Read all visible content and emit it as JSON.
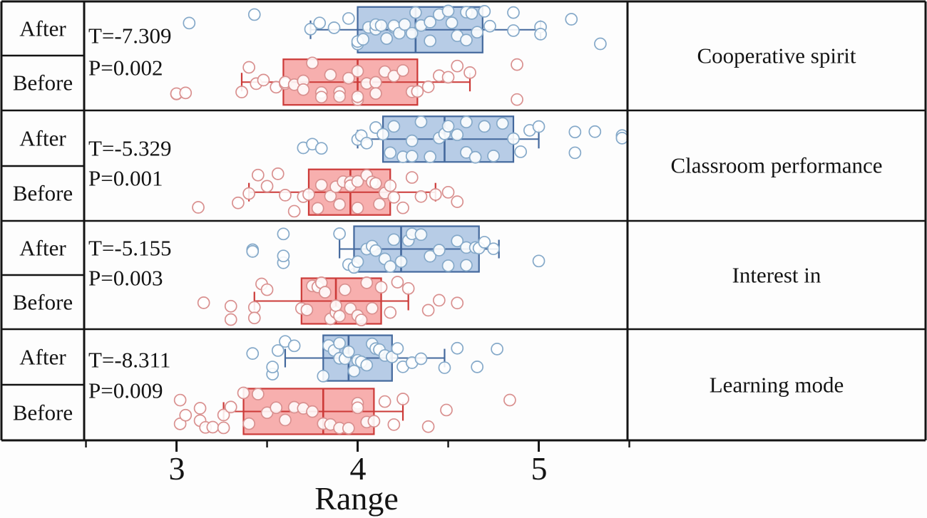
{
  "chart_data": {
    "type": "boxplot",
    "orientation": "horizontal",
    "xlabel": "Range",
    "x_ticks": [
      3,
      4,
      5
    ],
    "x_minor_ticks": [
      2.5,
      3.5,
      4.5,
      5.5
    ],
    "x_range": [
      2.5,
      5.5
    ],
    "groups": [
      "After",
      "Before"
    ],
    "legend_position": "none",
    "grid": false,
    "colors": {
      "after_fill": "#b7cce6",
      "after_stroke": "#44699d",
      "after_point": "#85a9c9",
      "before_fill": "#f7afae",
      "before_stroke": "#cc3a38",
      "before_point": "#d9908f",
      "frame": "#141414",
      "point_fill": "#ffffff"
    },
    "panels": [
      {
        "category": "Cooperative spirit",
        "t": "T=-7.309",
        "p": "P=0.002",
        "after": {
          "box": {
            "whisker_low": 3.74,
            "q1": 4.0,
            "median": 4.32,
            "q3": 4.69,
            "whisker_high": 5.01
          },
          "points": [
            3.07,
            3.43,
            3.74,
            3.79,
            3.87,
            3.95,
            4.0,
            4.0,
            4.03,
            4.06,
            4.1,
            4.1,
            4.13,
            4.16,
            4.2,
            4.2,
            4.23,
            4.26,
            4.3,
            4.32,
            4.35,
            4.4,
            4.4,
            4.45,
            4.5,
            4.52,
            4.55,
            4.6,
            4.6,
            4.63,
            4.66,
            4.7,
            4.73,
            4.86,
            4.86,
            5.01,
            5.01,
            5.18,
            5.34
          ]
        },
        "before": {
          "box": {
            "whisker_low": 3.36,
            "q1": 3.59,
            "median": 4.0,
            "q3": 4.33,
            "whisker_high": 4.62
          },
          "points": [
            3.0,
            3.0,
            3.05,
            3.36,
            3.4,
            3.44,
            3.48,
            3.55,
            3.6,
            3.6,
            3.65,
            3.7,
            3.7,
            3.75,
            3.8,
            3.8,
            3.85,
            3.9,
            3.9,
            3.95,
            4.0,
            4.0,
            4.0,
            4.05,
            4.1,
            4.1,
            4.15,
            4.2,
            4.25,
            4.3,
            4.33,
            4.39,
            4.45,
            4.5,
            4.55,
            4.62,
            4.88,
            4.88
          ]
        }
      },
      {
        "category": "Classroom performance",
        "t": "T=-5.329",
        "p": "P=0.001",
        "after": {
          "box": {
            "whisker_low": 4.0,
            "q1": 4.14,
            "median": 4.48,
            "q3": 4.86,
            "whisker_high": 5.0
          },
          "points": [
            3.7,
            3.75,
            3.8,
            4.0,
            4.02,
            4.05,
            4.1,
            4.14,
            4.18,
            4.2,
            4.25,
            4.3,
            4.3,
            4.35,
            4.4,
            4.45,
            4.48,
            4.5,
            4.55,
            4.6,
            4.6,
            4.65,
            4.7,
            4.75,
            4.8,
            4.86,
            4.9,
            4.95,
            5.0,
            5.2,
            5.2,
            5.31,
            5.46,
            5.46
          ]
        },
        "before": {
          "box": {
            "whisker_low": 3.4,
            "q1": 3.73,
            "median": 3.96,
            "q3": 4.18,
            "whisker_high": 4.43
          },
          "points": [
            3.12,
            3.34,
            3.4,
            3.45,
            3.5,
            3.56,
            3.6,
            3.65,
            3.7,
            3.73,
            3.78,
            3.8,
            3.85,
            3.88,
            3.9,
            3.92,
            3.96,
            3.96,
            4.0,
            4.0,
            4.05,
            4.08,
            4.1,
            4.12,
            4.15,
            4.18,
            4.2,
            4.25,
            4.3,
            4.35,
            4.43,
            4.5,
            4.55
          ]
        }
      },
      {
        "category": "Interest in",
        "t": "T=-5.155",
        "p": "P=0.003",
        "after": {
          "box": {
            "whisker_low": 3.9,
            "q1": 3.98,
            "median": 4.24,
            "q3": 4.67,
            "whisker_high": 4.78
          },
          "points": [
            3.42,
            3.42,
            3.59,
            3.59,
            3.59,
            3.9,
            3.95,
            3.98,
            4.0,
            4.05,
            4.08,
            4.1,
            4.15,
            4.18,
            4.2,
            4.24,
            4.28,
            4.3,
            4.35,
            4.4,
            4.45,
            4.5,
            4.55,
            4.6,
            4.6,
            4.65,
            4.67,
            4.7,
            4.75,
            5.0
          ]
        },
        "before": {
          "box": {
            "whisker_low": 3.43,
            "q1": 3.69,
            "median": 3.88,
            "q3": 4.13,
            "whisker_high": 4.28
          },
          "points": [
            3.15,
            3.3,
            3.3,
            3.43,
            3.43,
            3.47,
            3.5,
            3.69,
            3.72,
            3.75,
            3.78,
            3.8,
            3.82,
            3.85,
            3.88,
            3.88,
            3.9,
            3.93,
            3.96,
            4.0,
            4.02,
            4.05,
            4.08,
            4.13,
            4.18,
            4.22,
            4.28,
            4.39,
            4.45,
            4.55
          ]
        }
      },
      {
        "category": "Learning mode",
        "t": "T=-8.311",
        "p": "P=0.009",
        "after": {
          "box": {
            "whisker_low": 3.6,
            "q1": 3.81,
            "median": 3.95,
            "q3": 4.19,
            "whisker_high": 4.48
          },
          "points": [
            3.42,
            3.53,
            3.53,
            3.56,
            3.6,
            3.65,
            3.81,
            3.84,
            3.87,
            3.9,
            3.9,
            3.93,
            3.95,
            3.98,
            4.0,
            4.02,
            4.05,
            4.08,
            4.1,
            4.12,
            4.15,
            4.19,
            4.22,
            4.25,
            4.3,
            4.35,
            4.48,
            4.55,
            4.66,
            4.77
          ]
        },
        "before": {
          "box": {
            "whisker_low": 3.26,
            "q1": 3.37,
            "median": 3.81,
            "q3": 4.09,
            "whisker_high": 4.25
          },
          "points": [
            3.02,
            3.02,
            3.05,
            3.13,
            3.13,
            3.16,
            3.2,
            3.26,
            3.26,
            3.3,
            3.37,
            3.4,
            3.45,
            3.5,
            3.55,
            3.6,
            3.65,
            3.7,
            3.75,
            3.81,
            3.85,
            3.9,
            3.95,
            4.0,
            4.0,
            4.05,
            4.09,
            4.15,
            4.2,
            4.25,
            4.39,
            4.49,
            4.84
          ]
        }
      }
    ]
  }
}
